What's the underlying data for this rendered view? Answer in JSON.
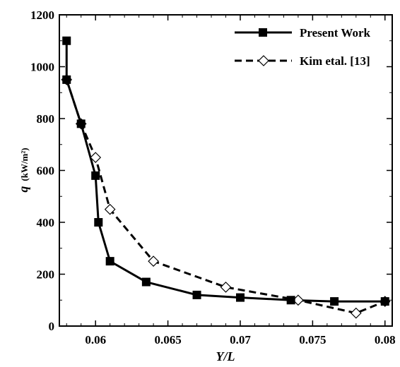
{
  "chart_data": {
    "type": "line",
    "xlabel": "Y/L",
    "ylabel": "q",
    "ylabel_unit": "(kW/m²)",
    "xlim": [
      0.0575,
      0.0805
    ],
    "ylim": [
      0,
      1200
    ],
    "x_ticks": [
      0.06,
      0.065,
      0.07,
      0.075,
      0.08
    ],
    "x_tick_labels": [
      "0.06",
      "0.065",
      "0.07",
      "0.075",
      "0.08"
    ],
    "y_ticks": [
      0,
      200,
      400,
      600,
      800,
      1000,
      1200
    ],
    "y_tick_labels": [
      "0",
      "200",
      "400",
      "600",
      "800",
      "1000",
      "1200"
    ],
    "legend_position": "top-right",
    "grid": false,
    "series": [
      {
        "name": "Present Work",
        "style": "solid",
        "marker": "filled-square",
        "color": "#000000",
        "x": [
          0.058,
          0.058,
          0.059,
          0.06,
          0.0602,
          0.061,
          0.0635,
          0.067,
          0.07,
          0.0735,
          0.0765,
          0.08
        ],
        "y": [
          1100,
          950,
          780,
          580,
          400,
          250,
          170,
          120,
          110,
          100,
          95,
          95
        ]
      },
      {
        "name": "Kim etal. [13]",
        "style": "dashed",
        "marker": "open-diamond",
        "color": "#000000",
        "x": [
          0.058,
          0.059,
          0.06,
          0.061,
          0.064,
          0.069,
          0.074,
          0.078,
          0.08
        ],
        "y": [
          950,
          780,
          650,
          450,
          250,
          150,
          100,
          50,
          95
        ]
      }
    ]
  }
}
